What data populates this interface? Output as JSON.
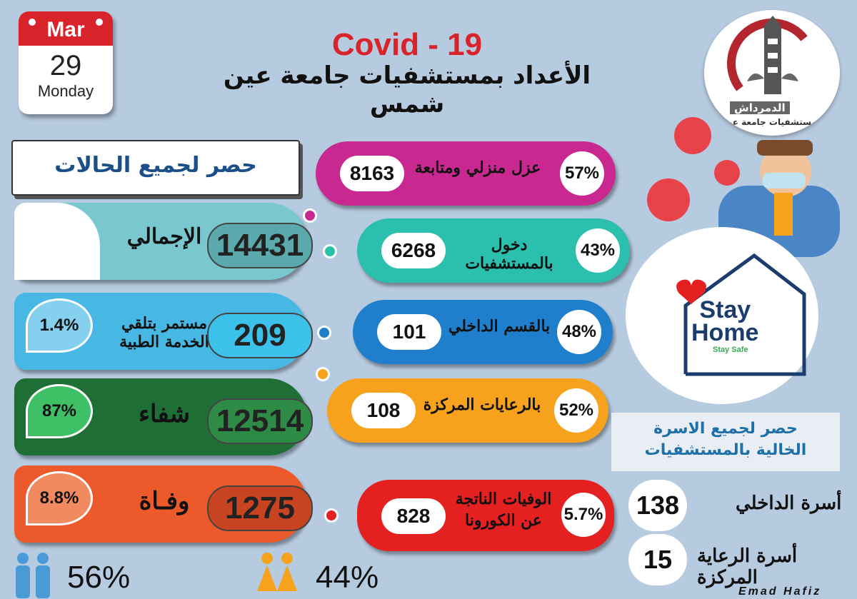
{
  "calendar": {
    "month": "Mar",
    "day": "29",
    "weekday": "Monday"
  },
  "header": {
    "title": "Covid - 19",
    "subtitle": "الأعداد بمستشفيات جامعة عين شمس"
  },
  "logo": {
    "line1": "الدمرداش",
    "line2": "مستشفيات جامعة عين شمس"
  },
  "all_cases_label": "حصر لجميع الحالات",
  "bars": [
    {
      "label": "الإجمالي",
      "value": "14431"
    },
    {
      "label": "مستمر بتلقي الخدمة الطبية",
      "value": "209",
      "pct": "1.4%"
    },
    {
      "label": "شفاء",
      "value": "12514",
      "pct": "87%"
    },
    {
      "label": "وفـاة",
      "value": "1275",
      "pct": "8.8%"
    }
  ],
  "pills": [
    {
      "pct": "57%",
      "label": "عزل منزلي ومتابعة",
      "count": "8163"
    },
    {
      "pct": "43%",
      "label": "دخول بالمستشفيات",
      "count": "6268"
    },
    {
      "pct": "48%",
      "label": "بالقسم الداخلي",
      "count": "101"
    },
    {
      "pct": "52%",
      "label": "بالرعايات المركزة",
      "count": "108"
    },
    {
      "pct": "5.7%",
      "label": "الوفيات الناتجة عن الكورونا",
      "count": "828"
    }
  ],
  "stay": {
    "line1": "Stay",
    "line2": "Home",
    "line3": "Stay Safe"
  },
  "family": {
    "line1": "حصر لجميع الاسرة",
    "line2": "الخالية بالمستشفيات"
  },
  "beds": [
    {
      "label": "أسرة الداخلي",
      "value": "138"
    },
    {
      "label": "أسرة الرعاية المركزة",
      "value": "15"
    }
  ],
  "gender": {
    "male": "56%",
    "female": "44%"
  },
  "signature": "Emad Hafiz",
  "colors": {
    "title": "#d8232a",
    "magenta": "#c8288f",
    "teal": "#2bbfae",
    "blue": "#1f7fcc",
    "orange": "#f6a21c",
    "red": "#e42020",
    "green": "#1e6e35",
    "coral": "#ec5a2c"
  }
}
